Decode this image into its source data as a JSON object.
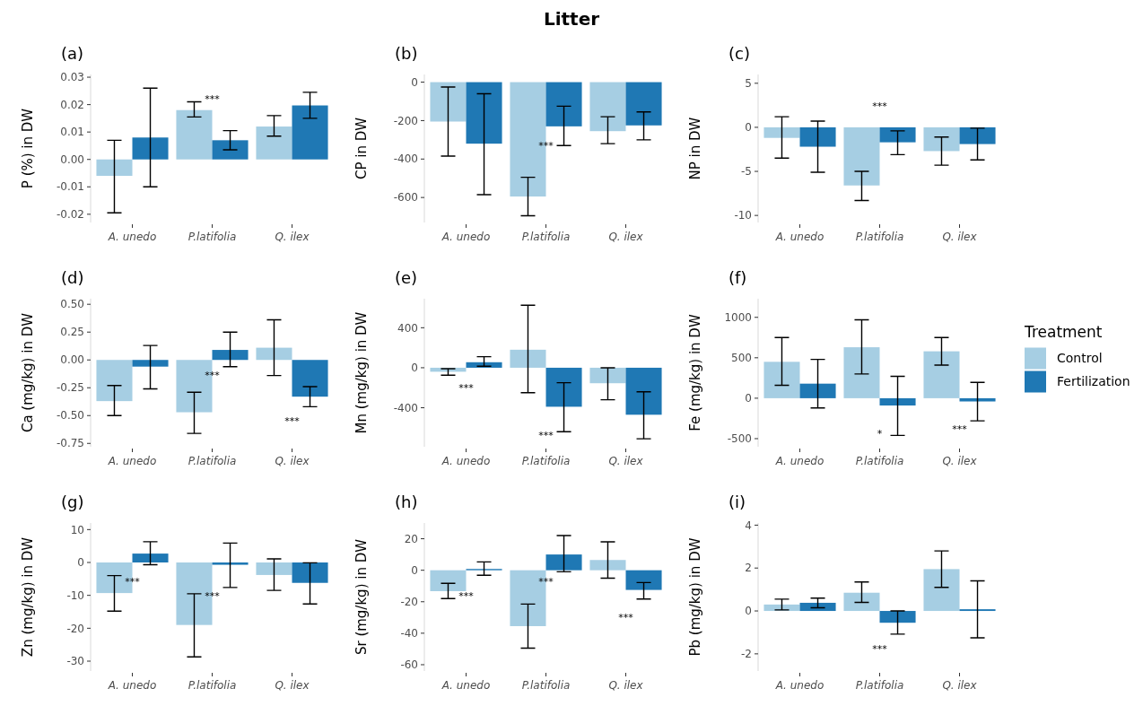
{
  "chart_data": [
    {
      "type": "bar",
      "title": "(a)",
      "ylabel": "P (%) in DW",
      "categories": [
        "A. unedo",
        "P.latifolia",
        "Q. ilex"
      ],
      "ylim": [
        -0.023,
        0.031
      ],
      "yticks": [
        -0.02,
        -0.01,
        {
          "value": 0,
          "label": "0.00"
        },
        0.01,
        0.02,
        0.03
      ],
      "grid": false,
      "legend": false,
      "series": [
        {
          "color": "#a6cee3",
          "values": [
            -0.006,
            0.018,
            0.012
          ],
          "errors": [
            [
              -0.0195,
              0.007
            ],
            [
              0.0155,
              0.021
            ],
            [
              0.0085,
              0.016
            ]
          ]
        },
        {
          "color": "#1f78b4",
          "values": [
            0.008,
            0.007,
            0.0197
          ],
          "errors": [
            [
              -0.01,
              0.026
            ],
            [
              0.0035,
              0.0105
            ],
            [
              0.015,
              0.0245
            ]
          ]
        }
      ],
      "annotations": [
        "***"
      ]
    },
    {
      "type": "bar",
      "title": "(b)",
      "ylabel": "CP in DW",
      "categories": [
        "A. unedo",
        "P.latifolia",
        "Q. ilex"
      ],
      "ylim": [
        -730,
        40
      ],
      "yticks": [
        -600,
        -400,
        -200,
        0
      ],
      "grid": false,
      "legend": false,
      "series": [
        {
          "color": "#a6cee3",
          "values": [
            -205,
            -595,
            -255
          ],
          "errors": [
            [
              -385,
              -25
            ],
            [
              -695,
              -495
            ],
            [
              -320,
              -180
            ]
          ]
        },
        {
          "color": "#1f78b4",
          "values": [
            -320,
            -230,
            -225
          ],
          "errors": [
            [
              -585,
              -60
            ],
            [
              -330,
              -125
            ],
            [
              -300,
              -155
            ]
          ]
        }
      ],
      "annotations": [
        "Litter",
        {
          "text": "***",
          "x": "P.latifolia",
          "y": -330
        }
      ]
    },
    {
      "type": "bar",
      "title": "(c)",
      "ylabel": "NP in DW",
      "categories": [
        "A. unedo",
        "P.latifolia",
        "Q. ilex"
      ],
      "ylim": [
        -10.8,
        6
      ],
      "yticks": [
        -10,
        -5,
        0,
        5
      ],
      "grid": false,
      "legend": false,
      "series": [
        {
          "color": "#a6cee3",
          "values": [
            -1.2,
            -6.6,
            -2.7
          ],
          "errors": [
            [
              -3.5,
              1.2
            ],
            [
              -8.3,
              -5.0
            ],
            [
              -4.3,
              -1.1
            ]
          ]
        },
        {
          "color": "#1f78b4",
          "values": [
            -2.2,
            -1.7,
            -1.9
          ],
          "errors": [
            [
              -5.1,
              0.7
            ],
            [
              -3.1,
              -0.4
            ],
            [
              -3.7,
              -0.1
            ]
          ]
        }
      ],
      "annotations": [
        "***"
      ]
    },
    {
      "type": "bar",
      "title": "(d)",
      "ylabel": "Ca (mg/kg) in DW",
      "categories": [
        "A. unedo",
        "P.latifolia",
        "Q. ilex"
      ],
      "ylim": [
        -0.78,
        0.55
      ],
      "yticks": [
        {
          "value": -0.75,
          "label": "-0.75"
        },
        {
          "value": -0.5,
          "label": "-0.50"
        },
        {
          "value": -0.25,
          "label": "-0.25"
        },
        {
          "value": 0,
          "label": "0.00"
        },
        0.25,
        {
          "value": 0.5,
          "label": "0.50"
        }
      ],
      "grid": false,
      "legend": false,
      "series": [
        {
          "color": "#a6cee3",
          "values": [
            -0.37,
            -0.47,
            0.11
          ],
          "errors": [
            [
              -0.5,
              -0.23
            ],
            [
              -0.66,
              -0.29
            ],
            [
              -0.14,
              0.36
            ]
          ]
        },
        {
          "color": "#1f78b4",
          "values": [
            -0.06,
            0.09,
            -0.33
          ],
          "errors": [
            [
              -0.26,
              0.13
            ],
            [
              -0.06,
              0.25
            ],
            [
              -0.42,
              -0.24
            ]
          ]
        }
      ],
      "annotations": [
        {
          "text": "***",
          "x": "P.latifolia",
          "y": -0.14
        },
        "***"
      ]
    },
    {
      "type": "bar",
      "title": "(e)",
      "ylabel": "Mn (mg/kg) in DW",
      "categories": [
        "A. unedo",
        "P.latifolia",
        "Q. ilex"
      ],
      "ylim": [
        -790,
        690
      ],
      "yticks": [
        -400,
        0,
        400
      ],
      "grid": false,
      "legend": false,
      "series": [
        {
          "color": "#a6cee3",
          "values": [
            -40,
            180,
            -155
          ],
          "errors": [
            [
              -75,
              -10
            ],
            [
              -250,
              625
            ],
            [
              -320,
              0
            ]
          ]
        },
        {
          "color": "#1f78b4",
          "values": [
            55,
            -390,
            -470
          ],
          "errors": [
            [
              15,
              110
            ],
            [
              -640,
              -150
            ],
            [
              -710,
              -240
            ]
          ]
        }
      ],
      "annotations": [
        "***",
        "***"
      ]
    },
    {
      "type": "bar",
      "title": "(f)",
      "ylabel": "Fe (mg/kg) in DW",
      "legend_title": "Treatment",
      "categories": [
        "A. unedo",
        "P.latifolia",
        "Q. ilex"
      ],
      "ylim": [
        -600,
        1230
      ],
      "yticks": [
        -500,
        0,
        500,
        1000
      ],
      "grid": false,
      "legend": "right",
      "series": [
        {
          "name": "Control",
          "color": "#a6cee3",
          "values": [
            450,
            630,
            580
          ],
          "errors": [
            [
              160,
              750
            ],
            [
              300,
              970
            ],
            [
              410,
              750
            ]
          ]
        },
        {
          "name": "Fertilization",
          "color": "#1f78b4",
          "values": [
            180,
            -90,
            -40
          ],
          "errors": [
            [
              -120,
              480
            ],
            [
              -460,
              270
            ],
            [
              -280,
              195
            ]
          ]
        }
      ],
      "annotations": [
        "*",
        "***"
      ]
    },
    {
      "type": "bar",
      "title": "(g)",
      "ylabel": "Zn (mg/kg) in DW",
      "categories": [
        "A. unedo",
        "P.latifolia",
        "Q. ilex"
      ],
      "ylim": [
        -33,
        12
      ],
      "yticks": [
        -30,
        -20,
        -10,
        0,
        10
      ],
      "grid": false,
      "legend": false,
      "series": [
        {
          "color": "#a6cee3",
          "values": [
            -9.3,
            -19,
            -3.8
          ],
          "errors": [
            [
              -14.8,
              -4
            ],
            [
              -28.7,
              -9.5
            ],
            [
              -8.5,
              1.1
            ]
          ]
        },
        {
          "color": "#1f78b4",
          "values": [
            2.7,
            -0.7,
            -6.2
          ],
          "errors": [
            [
              -0.7,
              6.3
            ],
            [
              -7.6,
              5.9
            ],
            [
              -12.6,
              -0.1
            ]
          ]
        }
      ],
      "annotations": [
        {
          "text": "***",
          "x": "A. unedo",
          "y": -5.9
        },
        {
          "text": "***",
          "x": "P.latifolia",
          "y": -10
        }
      ]
    },
    {
      "type": "bar",
      "title": "(h)",
      "ylabel": "Sr (mg/kg) in DW",
      "categories": [
        "A. unedo",
        "P.latifolia",
        "Q. ilex"
      ],
      "ylim": [
        -64,
        30
      ],
      "yticks": [
        -60,
        -40,
        -20,
        0,
        20
      ],
      "grid": false,
      "legend": false,
      "series": [
        {
          "color": "#a6cee3",
          "values": [
            -13.3,
            -35.5,
            6.5
          ],
          "errors": [
            [
              -18,
              -8.3
            ],
            [
              -49.5,
              -21.5
            ],
            [
              -5,
              18
            ]
          ]
        },
        {
          "color": "#1f78b4",
          "values": [
            0.8,
            10,
            -12.5
          ],
          "errors": [
            [
              -3.2,
              5.3
            ],
            [
              -1,
              22
            ],
            [
              -18.3,
              -7.8
            ]
          ]
        }
      ],
      "annotations": [
        {
          "text": "***",
          "x": "A. unedo",
          "y": -16
        },
        {
          "text": "***",
          "x": "P.latifolia",
          "y": -7
        },
        "***"
      ]
    },
    {
      "type": "bar",
      "title": "(i)",
      "ylabel": "Pb (mg/kg) in DW",
      "categories": [
        "A. unedo",
        "P.latifolia",
        "Q. ilex"
      ],
      "ylim": [
        -2.8,
        4.1
      ],
      "yticks": [
        -2,
        0,
        2,
        4
      ],
      "grid": false,
      "legend": false,
      "series": [
        {
          "color": "#a6cee3",
          "values": [
            0.3,
            0.85,
            1.95
          ],
          "errors": [
            [
              0.05,
              0.55
            ],
            [
              0.4,
              1.35
            ],
            [
              1.1,
              2.8
            ]
          ]
        },
        {
          "color": "#1f78b4",
          "values": [
            0.38,
            -0.55,
            0.08
          ],
          "errors": [
            [
              0.15,
              0.6
            ],
            [
              -1.08,
              0.0
            ],
            [
              -1.25,
              1.4
            ]
          ]
        }
      ],
      "annotations": [
        "***"
      ]
    }
  ]
}
